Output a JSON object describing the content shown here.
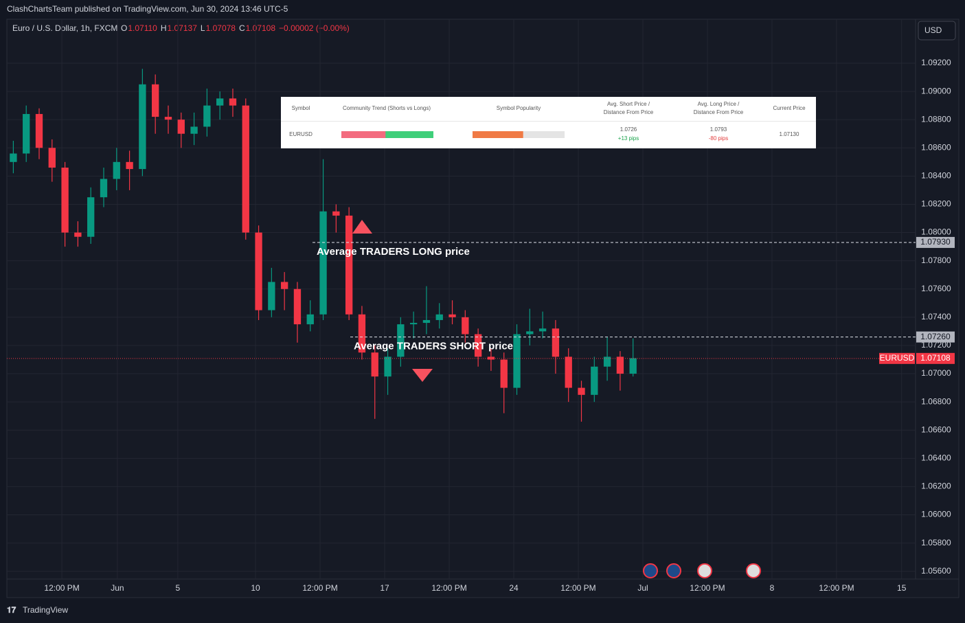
{
  "header": {
    "publisher": "ClashChartsTeam published on TradingView.com, Jun 30, 2024 13:46 UTC-5",
    "symbol": "Euro / U.S. Dollar, 1h, FXCM",
    "ohlc": [
      {
        "key": "O",
        "value": "1.07110"
      },
      {
        "key": "H",
        "value": "1.07137"
      },
      {
        "key": "L",
        "value": "1.07078"
      },
      {
        "key": "C",
        "value": "1.07108"
      }
    ],
    "change": "−0.00002 (−0.00%)",
    "currency": "USD",
    "brand": "TradingView"
  },
  "table": {
    "headers": [
      "Symbol",
      "Community Trend (Shorts vs Longs)",
      "Symbol Popularity",
      "Avg. Short Price /",
      "Distance From Price",
      "Avg. Long Price /",
      "Distance From Price",
      "Current Price"
    ],
    "row": {
      "symbol": "EURUSD",
      "shorts_share": 48,
      "popularity": 55,
      "short_price": "1.0726",
      "short_distance": "+13 pips",
      "long_price": "1.0793",
      "long_distance": "-80 pips",
      "current_price": "1.07130"
    }
  },
  "chart_data": {
    "type": "candlestick",
    "up_color": "#089981",
    "down_color": "#f23645",
    "grid": true,
    "xlim": [
      0,
      35.19
    ],
    "ylim": [
      1.05545,
      1.0938
    ],
    "xticks": [
      {
        "value": 2.13,
        "label": "12:00 PM"
      },
      {
        "value": 4.28,
        "label": "Jun"
      },
      {
        "value": 6.62,
        "label": "5"
      },
      {
        "value": 9.63,
        "label": "10"
      },
      {
        "value": 12.13,
        "label": "12:00 PM"
      },
      {
        "value": 14.63,
        "label": "17"
      },
      {
        "value": 17.13,
        "label": "12:00 PM"
      },
      {
        "value": 19.63,
        "label": "24"
      },
      {
        "value": 22.13,
        "label": "12:00 PM"
      },
      {
        "value": 24.63,
        "label": "Jul"
      },
      {
        "value": 27.13,
        "label": "12:00 PM"
      },
      {
        "value": 29.63,
        "label": "8"
      },
      {
        "value": 32.13,
        "label": "12:00 PM"
      },
      {
        "value": 34.65,
        "label": "15"
      }
    ],
    "yticks": [
      {
        "value": 1.092,
        "label": "1.09200"
      },
      {
        "value": 1.09,
        "label": "1.09000"
      },
      {
        "value": 1.088,
        "label": "1.08800"
      },
      {
        "value": 1.086,
        "label": "1.08600"
      },
      {
        "value": 1.084,
        "label": "1.08400"
      },
      {
        "value": 1.082,
        "label": "1.08200"
      },
      {
        "value": 1.08,
        "label": "1.08000"
      },
      {
        "value": 1.078,
        "label": "1.07800"
      },
      {
        "value": 1.076,
        "label": "1.07600"
      },
      {
        "value": 1.074,
        "label": "1.07400"
      },
      {
        "value": 1.072,
        "label": "1.07200"
      },
      {
        "value": 1.07,
        "label": "1.07000"
      },
      {
        "value": 1.068,
        "label": "1.06800"
      },
      {
        "value": 1.066,
        "label": "1.06600"
      },
      {
        "value": 1.064,
        "label": "1.06400"
      },
      {
        "value": 1.062,
        "label": "1.06200"
      },
      {
        "value": 1.06,
        "label": "1.06000"
      },
      {
        "value": 1.058,
        "label": "1.05800"
      },
      {
        "value": 1.056,
        "label": "1.05600"
      }
    ],
    "x": [
      0.25,
      0.75,
      1.25,
      1.75,
      2.25,
      2.75,
      3.25,
      3.75,
      4.25,
      4.75,
      5.25,
      5.75,
      6.25,
      6.75,
      7.25,
      7.75,
      8.25,
      8.75,
      9.25,
      9.75,
      10.25,
      10.75,
      11.25,
      11.75,
      12.25,
      12.75,
      13.25,
      13.75,
      14.25,
      14.75,
      15.25,
      15.75,
      16.25,
      16.75,
      17.25,
      17.75,
      18.25,
      18.75,
      19.25,
      19.75,
      20.25,
      20.75,
      21.25,
      21.75,
      22.25,
      22.75,
      23.25,
      23.75,
      24.25
    ],
    "open": [
      1.085,
      1.0856,
      1.0884,
      1.086,
      1.0846,
      1.08,
      1.0797,
      1.0825,
      1.0838,
      1.085,
      1.0845,
      1.0905,
      1.0882,
      1.088,
      1.087,
      1.0875,
      1.089,
      1.0895,
      1.089,
      1.08,
      1.0745,
      1.0765,
      1.076,
      1.0735,
      1.0742,
      1.0815,
      1.0812,
      1.0742,
      1.0715,
      1.0698,
      1.0712,
      1.0735,
      1.0736,
      1.0738,
      1.0742,
      1.074,
      1.0728,
      1.0712,
      1.071,
      1.069,
      1.0728,
      1.073,
      1.0732,
      1.0712,
      1.069,
      1.0685,
      1.0705,
      1.0712,
      1.07
    ],
    "high": [
      1.0865,
      1.089,
      1.0888,
      1.0866,
      1.085,
      1.0808,
      1.0832,
      1.0846,
      1.086,
      1.0858,
      1.0916,
      1.0912,
      1.089,
      1.0885,
      1.0885,
      1.0902,
      1.09,
      1.0902,
      1.0895,
      1.0805,
      1.0775,
      1.0772,
      1.0765,
      1.0752,
      1.0852,
      1.082,
      1.0818,
      1.0748,
      1.072,
      1.0718,
      1.074,
      1.0744,
      1.0762,
      1.075,
      1.0752,
      1.0745,
      1.0732,
      1.0718,
      1.0715,
      1.0735,
      1.0746,
      1.0744,
      1.0738,
      1.0718,
      1.0695,
      1.0712,
      1.0726,
      1.0716,
      1.0725
    ],
    "low": [
      1.0842,
      1.085,
      1.0852,
      1.0836,
      1.079,
      1.079,
      1.0792,
      1.0818,
      1.083,
      1.083,
      1.084,
      1.087,
      1.087,
      1.086,
      1.0862,
      1.0868,
      1.088,
      1.0882,
      1.0795,
      1.0738,
      1.074,
      1.0745,
      1.0722,
      1.073,
      1.0738,
      1.08,
      1.0738,
      1.071,
      1.0668,
      1.0685,
      1.0705,
      1.0725,
      1.0728,
      1.0732,
      1.0735,
      1.0722,
      1.0705,
      1.0702,
      1.0672,
      1.0685,
      1.072,
      1.0725,
      1.07,
      1.068,
      1.0666,
      1.068,
      1.0695,
      1.0688,
      1.0698
    ],
    "close": [
      1.0856,
      1.0884,
      1.086,
      1.0846,
      1.08,
      1.0797,
      1.0825,
      1.0838,
      1.085,
      1.0845,
      1.0905,
      1.0882,
      1.088,
      1.087,
      1.0875,
      1.089,
      1.0895,
      1.089,
      1.08,
      1.0745,
      1.0765,
      1.076,
      1.0735,
      1.0742,
      1.0815,
      1.0812,
      1.0742,
      1.0715,
      1.0698,
      1.0712,
      1.0735,
      1.0736,
      1.0738,
      1.0742,
      1.074,
      1.0728,
      1.0712,
      1.071,
      1.069,
      1.0728,
      1.073,
      1.0732,
      1.0712,
      1.069,
      1.0685,
      1.0705,
      1.0712,
      1.07,
      1.0711
    ],
    "levels": [
      {
        "value": 1.0793,
        "label": "1.07930",
        "annotation": "Average TRADERS LONG price"
      },
      {
        "value": 1.0726,
        "label": "1.07260",
        "annotation": "Average TRADERS SHORT price"
      }
    ],
    "current": {
      "value": 1.07108,
      "label": "1.07108",
      "name": "EURUSD"
    }
  }
}
